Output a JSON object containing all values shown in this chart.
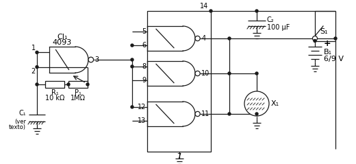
{
  "bg": "#ffffff",
  "lc": "#1a1a1a",
  "lw": 0.9,
  "fig_w": 5.2,
  "fig_h": 2.39,
  "dpi": 100,
  "labels": {
    "CI1": "CI₁",
    "4093": "4093",
    "R1_name": "R₁",
    "R1_val": "10 kΩ",
    "P1_name": "P₁",
    "P1_val": "1MΩ",
    "C1_name": "C₁",
    "C1_sub1": "(ver",
    "C1_sub2": "texto)",
    "C2_name": "C₂",
    "C2_val": "100 μF",
    "S1": "S₁",
    "B1": "B₁",
    "B1_val": "6/9 V",
    "X1": "X₁",
    "plus": "+"
  }
}
